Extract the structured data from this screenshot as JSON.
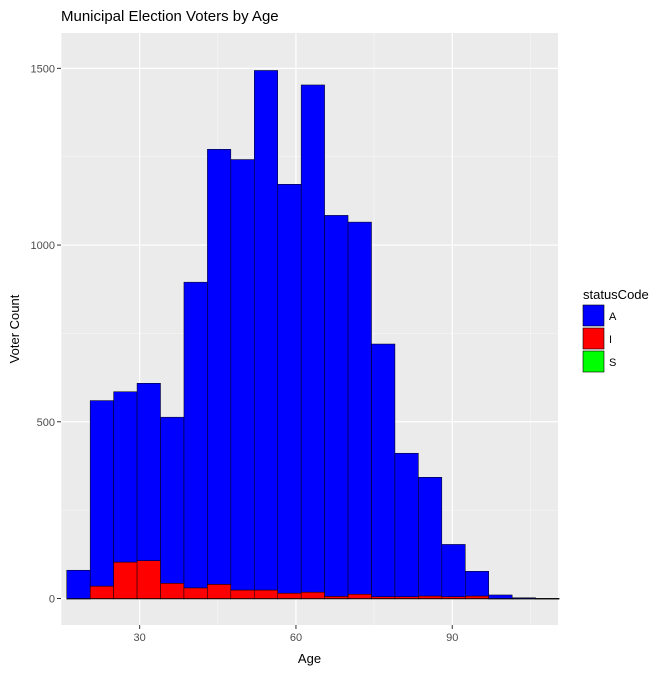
{
  "chart_data": {
    "type": "bar",
    "stacked": true,
    "title": "Municipal Election Voters by Age",
    "xlabel": "Age",
    "ylabel": "Voter Count",
    "xlim": [
      14.9,
      110.3
    ],
    "ylim": [
      -75,
      1600
    ],
    "x_ticks": [
      30,
      60,
      90
    ],
    "y_ticks": [
      0,
      500,
      1000,
      1500
    ],
    "grid": true,
    "bin_width": 4.5,
    "bin_starts": [
      16.0,
      20.5,
      25.0,
      29.5,
      34.0,
      38.5,
      43.0,
      47.5,
      52.0,
      56.5,
      61.0,
      65.5,
      70.0,
      74.5,
      79.0,
      83.5,
      88.0,
      92.5,
      97.0,
      101.5,
      106.0
    ],
    "series": [
      {
        "name": "A",
        "color": "#0000ff",
        "values": [
          80,
          525,
          482,
          502,
          470,
          865,
          1231,
          1218,
          1470,
          1157,
          1435,
          1078,
          1053,
          715,
          406,
          336,
          148,
          70,
          10,
          2,
          0
        ]
      },
      {
        "name": "I",
        "color": "#ff0000",
        "values": [
          0,
          35,
          103,
          107,
          43,
          30,
          40,
          24,
          24,
          15,
          18,
          6,
          12,
          5,
          5,
          7,
          5,
          7,
          0,
          0,
          0
        ]
      },
      {
        "name": "S",
        "color": "#00ff00",
        "values": [
          0,
          0,
          0,
          0,
          0,
          0,
          0,
          0,
          0,
          0,
          0,
          0,
          0,
          0,
          0,
          0,
          0,
          0,
          0,
          0,
          0
        ]
      }
    ],
    "legend": {
      "title": "statusCode",
      "placement": "right"
    }
  }
}
